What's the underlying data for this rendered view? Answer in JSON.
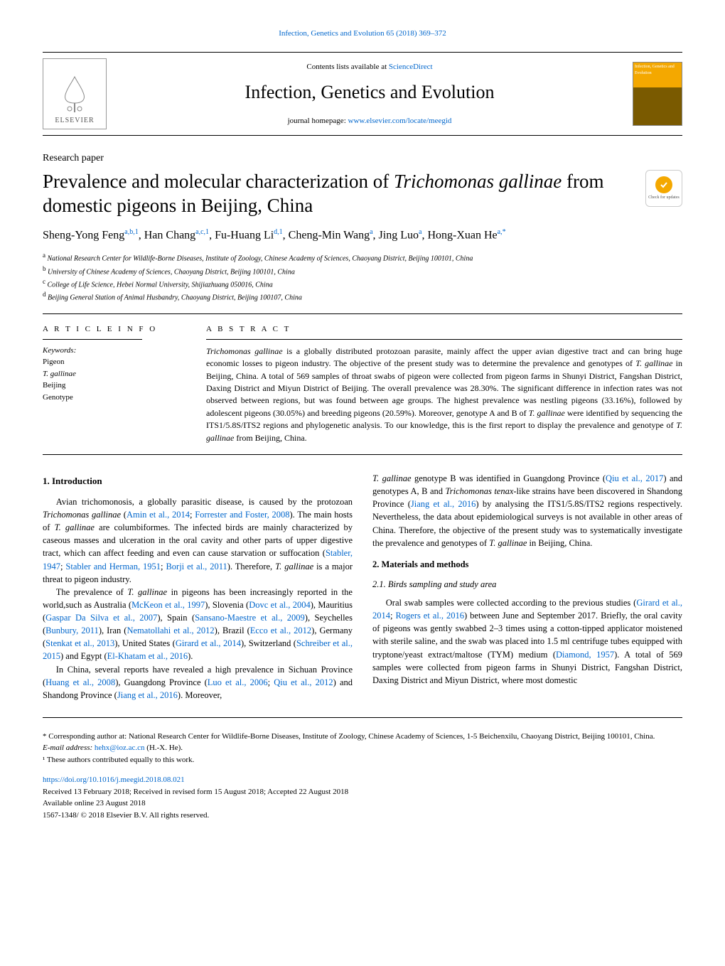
{
  "top_citation": "Infection, Genetics and Evolution 65 (2018) 369–372",
  "masthead": {
    "contents_prefix": "Contents lists available at ",
    "contents_link": "ScienceDirect",
    "journal": "Infection, Genetics and Evolution",
    "homepage_prefix": "journal homepage: ",
    "homepage_url": "www.elsevier.com/locate/meegid",
    "publisher": "ELSEVIER",
    "cover_text": "Infection, Genetics and Evolution"
  },
  "paper_type": "Research paper",
  "title_pre": "Prevalence and molecular characterization of ",
  "title_ital": "Trichomonas gallinae",
  "title_post": " from domestic pigeons in Beijing, China",
  "check_updates": "Check for updates",
  "authors_html": "Sheng-Yong Feng<sup>a,b,1</sup>, Han Chang<sup>a,c,1</sup>, Fu-Huang Li<sup>d,1</sup>, Cheng-Min Wang<sup>a</sup>, Jing Luo<sup>a</sup>, Hong-Xuan He<sup>a,*</sup>",
  "affiliations": [
    "a National Research Center for Wildlife-Borne Diseases, Institute of Zoology, Chinese Academy of Sciences, Chaoyang District, Beijing 100101, China",
    "b University of Chinese Academy of Sciences, Chaoyang District, Beijing 100101, China",
    "c College of Life Science, Hebei Normal University, Shijiazhuang 050016, China",
    "d Beijing General Station of Animal Husbandry, Chaoyang District, Beijing 100107, China"
  ],
  "info_heading": "A R T I C L E  I N F O",
  "keywords_label": "Keywords:",
  "keywords": [
    "Pigeon",
    "T. gallinae",
    "Beijing",
    "Genotype"
  ],
  "abstract_heading": "A B S T R A C T",
  "abstract": "Trichomonas gallinae is a globally distributed protozoan parasite, mainly affect the upper avian digestive tract and can bring huge economic losses to pigeon industry. The objective of the present study was to determine the prevalence and genotypes of T. gallinae in Beijing, China. A total of 569 samples of throat swabs of pigeon were collected from pigeon farms in Shunyi District, Fangshan District, Daxing District and Miyun District of Beijing. The overall prevalence was 28.30%. The significant difference in infection rates was not observed between regions, but was found between age groups. The highest prevalence was nestling pigeons (33.16%), followed by adolescent pigeons (30.05%) and breeding pigeons (20.59%). Moreover, genotype A and B of T. gallinae were identified by sequencing the ITS1/5.8S/ITS2 regions and phylogenetic analysis. To our knowledge, this is the first report to display the prevalence and genotype of T. gallinae from Beijing, China.",
  "section1_heading": "1. Introduction",
  "section2_heading": "2. Materials and methods",
  "section21_heading": "2.1. Birds sampling and study area",
  "col1": {
    "p1": "Avian trichomonosis, a globally parasitic disease, is caused by the protozoan <span class='ital'>Trichomonas gallinae</span> (<span class='cite'>Amin et al., 2014</span>; <span class='cite'>Forrester and Foster, 2008</span>). The main hosts of <span class='ital'>T. gallinae</span> are columbiformes. The infected birds are mainly characterized by caseous masses and ulceration in the oral cavity and other parts of upper digestive tract, which can affect feeding and even can cause starvation or suffocation (<span class='cite'>Stabler, 1947</span>; <span class='cite'>Stabler and Herman, 1951</span>; <span class='cite'>Borji et al., 2011</span>). Therefore, <span class='ital'>T. gallinae</span> is a major threat to pigeon industry.",
    "p2": "The prevalence of <span class='ital'>T. gallinae</span> in pigeons has been increasingly reported in the world,such as Australia (<span class='cite'>McKeon et al., 1997</span>), Slovenia (<span class='cite'>Dovc et al., 2004</span>), Mauritius (<span class='cite'>Gaspar Da Silva et al., 2007</span>), Spain (<span class='cite'>Sansano-Maestre et al., 2009</span>), Seychelles (<span class='cite'>Bunbury, 2011</span>), Iran (<span class='cite'>Nematollahi et al., 2012</span>), Brazil (<span class='cite'>Ecco et al., 2012</span>), Germany (<span class='cite'>Stenkat et al., 2013</span>), United States (<span class='cite'>Girard et al., 2014</span>), Switzerland (<span class='cite'>Schreiber et al., 2015</span>) and Egypt (<span class='cite'>El-Khatam et al., 2016</span>).",
    "p3": "In China, several reports have revealed a high prevalence in Sichuan Province (<span class='cite'>Huang et al., 2008</span>), Guangdong Province (<span class='cite'>Luo et al., 2006</span>; <span class='cite'>Qiu et al., 2012</span>) and Shandong Province (<span class='cite'>Jiang et al., 2016</span>). Moreover,"
  },
  "col2": {
    "p1": "<span class='ital'>T. gallinae</span> genotype B was identified in Guangdong Province (<span class='cite'>Qiu et al., 2017</span>) and genotypes A, B and <span class='ital'>Trichomonas tenax</span>-like strains have been discovered in Shandong Province (<span class='cite'>Jiang et al., 2016</span>) by analysing the ITS1/5.8S/ITS2 regions respectively. Nevertheless, the data about epidemiological surveys is not available in other areas of China. Therefore, the objective of the present study was to systematically investigate the prevalence and genotypes of <span class='ital'>T. gallinae</span> in Beijing, China.",
    "p2": "Oral swab samples were collected according to the previous studies (<span class='cite'>Girard et al., 2014</span>; <span class='cite'>Rogers et al., 2016</span>) between June and September 2017. Briefly, the oral cavity of pigeons was gently swabbed 2–3 times using a cotton-tipped applicator moistened with sterile saline, and the swab was placed into 1.5 ml centrifuge tubes equipped with tryptone/yeast extract/maltose (TYM) medium (<span class='cite'>Diamond, 1957</span>). A total of 569 samples were collected from pigeon farms in Shunyi District, Fangshan District, Daxing District and Miyun District, where most domestic"
  },
  "footnotes": {
    "corresponding": "* Corresponding author at: National Research Center for Wildlife-Borne Diseases, Institute of Zoology, Chinese Academy of Sciences, 1-5 Beichenxilu, Chaoyang District, Beijing 100101, China.",
    "email_label": "E-mail address: ",
    "email": "hehx@ioz.ac.cn",
    "email_suffix": " (H.-X. He).",
    "equal": "¹ These authors contributed equally to this work."
  },
  "pub": {
    "doi": "https://doi.org/10.1016/j.meegid.2018.08.021",
    "received": "Received 13 February 2018; Received in revised form 15 August 2018; Accepted 22 August 2018",
    "available": "Available online 23 August 2018",
    "copyright": "1567-1348/ © 2018 Elsevier B.V. All rights reserved."
  },
  "colors": {
    "link": "#0066cc",
    "cover_top": "#f4a800",
    "cover_bot": "#7a5a00"
  }
}
